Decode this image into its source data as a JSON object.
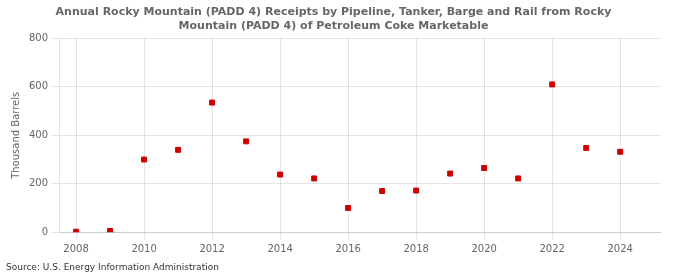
{
  "chart_data": {
    "type": "scatter",
    "title": "Annual Rocky Mountain (PADD 4) Receipts by Pipeline, Tanker, Barge and Rail from Rocky\nMountain (PADD 4) of Petroleum Coke Marketable",
    "ylabel": "Thousand Barrels",
    "annotations": [
      "Source: U.S. Energy Information Administration"
    ],
    "x": [
      2008,
      2009,
      2010,
      2011,
      2012,
      2013,
      2014,
      2015,
      2016,
      2017,
      2018,
      2019,
      2020,
      2021,
      2022,
      2023,
      2024
    ],
    "values": [
      2,
      5,
      300,
      340,
      535,
      375,
      238,
      222,
      100,
      170,
      172,
      242,
      265,
      222,
      610,
      348,
      332
    ],
    "color": "#cc0000",
    "marker": "square",
    "xlim": [
      2007.5,
      2025.2
    ],
    "xticks": [
      2008,
      2010,
      2012,
      2014,
      2016,
      2018,
      2020,
      2022,
      2024
    ],
    "ylim": [
      0,
      800
    ],
    "yticks": [
      0,
      200,
      400,
      600,
      800
    ],
    "grid": true
  }
}
